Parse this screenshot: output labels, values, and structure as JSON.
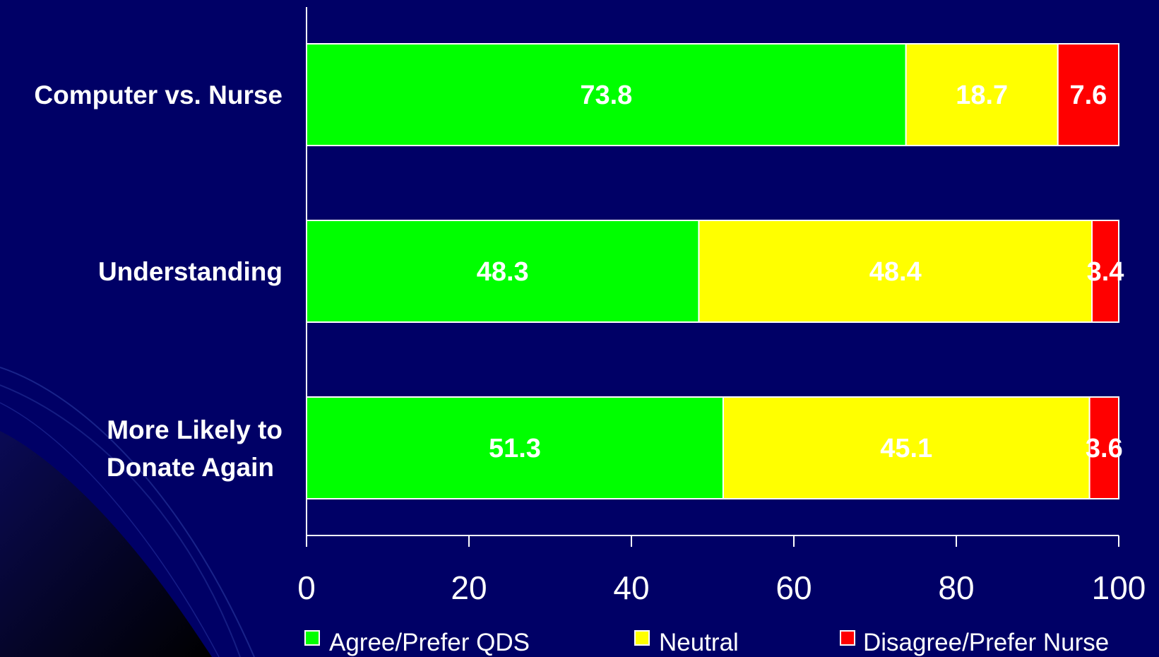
{
  "chart_data": {
    "type": "bar",
    "orientation": "horizontal",
    "stacked": true,
    "categories": [
      "Computer vs. Nurse",
      "Understanding",
      "More Likely to Donate Again"
    ],
    "series": [
      {
        "name": "Agree/Prefer QDS",
        "values": [
          73.8,
          48.3,
          51.3
        ],
        "labels": [
          "73.8",
          "48.3",
          "51.3"
        ],
        "color": "#00ff00"
      },
      {
        "name": "Neutral",
        "values": [
          18.7,
          48.4,
          45.1
        ],
        "labels": [
          "18.7",
          "48.4",
          "45.1"
        ],
        "color": "#ffff00"
      },
      {
        "name": "Disagree/Prefer Nurse",
        "values": [
          7.6,
          3.4,
          3.6
        ],
        "labels": [
          "7.6",
          "3.4",
          "3.6"
        ],
        "color": "#ff0000"
      }
    ],
    "xlim": [
      0,
      100
    ],
    "xticks": [
      "0",
      "20",
      "40",
      "60",
      "80",
      "100"
    ],
    "title": "",
    "xlabel": "",
    "ylabel": "",
    "grid": false,
    "legend": "bottom",
    "colors": {
      "background": "#000066",
      "axis": "#ffffff",
      "bar_outline": "#ffffff",
      "text": "#ffffff"
    }
  }
}
